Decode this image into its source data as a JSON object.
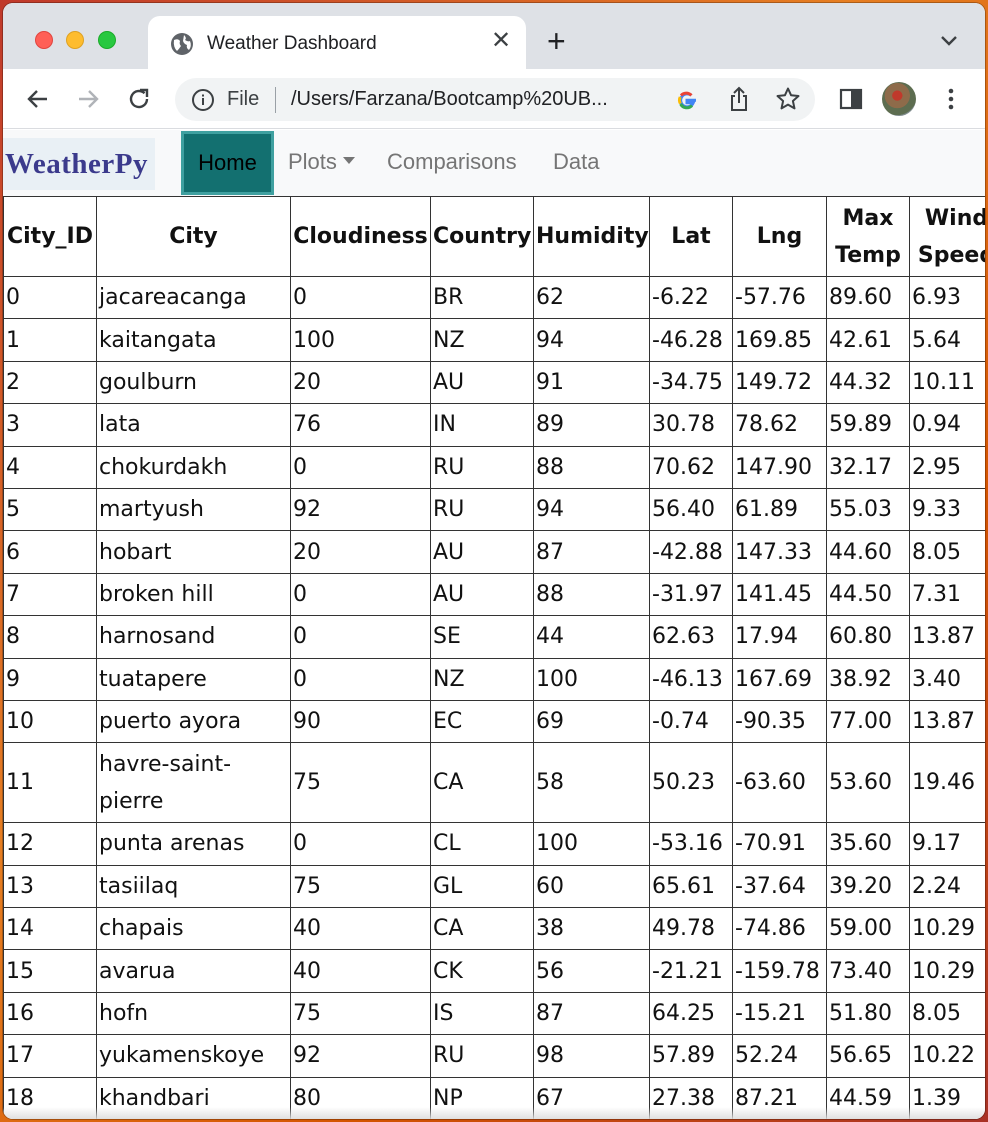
{
  "browser": {
    "tab_title": "Weather Dashboard",
    "omnibox_scheme": "File",
    "url": "/Users/Farzana/Bootcamp%20UB..."
  },
  "nav": {
    "brand": "WeatherPy",
    "home": "Home",
    "plots": "Plots",
    "comparisons": "Comparisons",
    "data": "Data",
    "active_color": "#137070"
  },
  "table": {
    "headers": [
      "City_ID",
      "City",
      "Cloudiness",
      "Country",
      "Humidity",
      "Lat",
      "Lng",
      "Max Temp",
      "Wind Speed"
    ],
    "rows": [
      [
        "0",
        "jacareacanga",
        "0",
        "BR",
        "62",
        "-6.22",
        "-57.76",
        "89.60",
        "6.93"
      ],
      [
        "1",
        "kaitangata",
        "100",
        "NZ",
        "94",
        "-46.28",
        "169.85",
        "42.61",
        "5.64"
      ],
      [
        "2",
        "goulburn",
        "20",
        "AU",
        "91",
        "-34.75",
        "149.72",
        "44.32",
        "10.11"
      ],
      [
        "3",
        "lata",
        "76",
        "IN",
        "89",
        "30.78",
        "78.62",
        "59.89",
        "0.94"
      ],
      [
        "4",
        "chokurdakh",
        "0",
        "RU",
        "88",
        "70.62",
        "147.90",
        "32.17",
        "2.95"
      ],
      [
        "5",
        "martyush",
        "92",
        "RU",
        "94",
        "56.40",
        "61.89",
        "55.03",
        "9.33"
      ],
      [
        "6",
        "hobart",
        "20",
        "AU",
        "87",
        "-42.88",
        "147.33",
        "44.60",
        "8.05"
      ],
      [
        "7",
        "broken hill",
        "0",
        "AU",
        "88",
        "-31.97",
        "141.45",
        "44.50",
        "7.31"
      ],
      [
        "8",
        "harnosand",
        "0",
        "SE",
        "44",
        "62.63",
        "17.94",
        "60.80",
        "13.87"
      ],
      [
        "9",
        "tuatapere",
        "0",
        "NZ",
        "100",
        "-46.13",
        "167.69",
        "38.92",
        "3.40"
      ],
      [
        "10",
        "puerto ayora",
        "90",
        "EC",
        "69",
        "-0.74",
        "-90.35",
        "77.00",
        "13.87"
      ],
      [
        "11",
        "havre-saint-pierre",
        "75",
        "CA",
        "58",
        "50.23",
        "-63.60",
        "53.60",
        "19.46"
      ],
      [
        "12",
        "punta arenas",
        "0",
        "CL",
        "100",
        "-53.16",
        "-70.91",
        "35.60",
        "9.17"
      ],
      [
        "13",
        "tasiilaq",
        "75",
        "GL",
        "60",
        "65.61",
        "-37.64",
        "39.20",
        "2.24"
      ],
      [
        "14",
        "chapais",
        "40",
        "CA",
        "38",
        "49.78",
        "-74.86",
        "59.00",
        "10.29"
      ],
      [
        "15",
        "avarua",
        "40",
        "CK",
        "56",
        "-21.21",
        "-159.78",
        "73.40",
        "10.29"
      ],
      [
        "16",
        "hofn",
        "75",
        "IS",
        "87",
        "64.25",
        "-15.21",
        "51.80",
        "8.05"
      ],
      [
        "17",
        "yukamenskoye",
        "92",
        "RU",
        "98",
        "57.89",
        "52.24",
        "56.65",
        "10.22"
      ],
      [
        "18",
        "khandbari",
        "80",
        "NP",
        "67",
        "27.38",
        "87.21",
        "44.59",
        "1.39"
      ]
    ]
  }
}
